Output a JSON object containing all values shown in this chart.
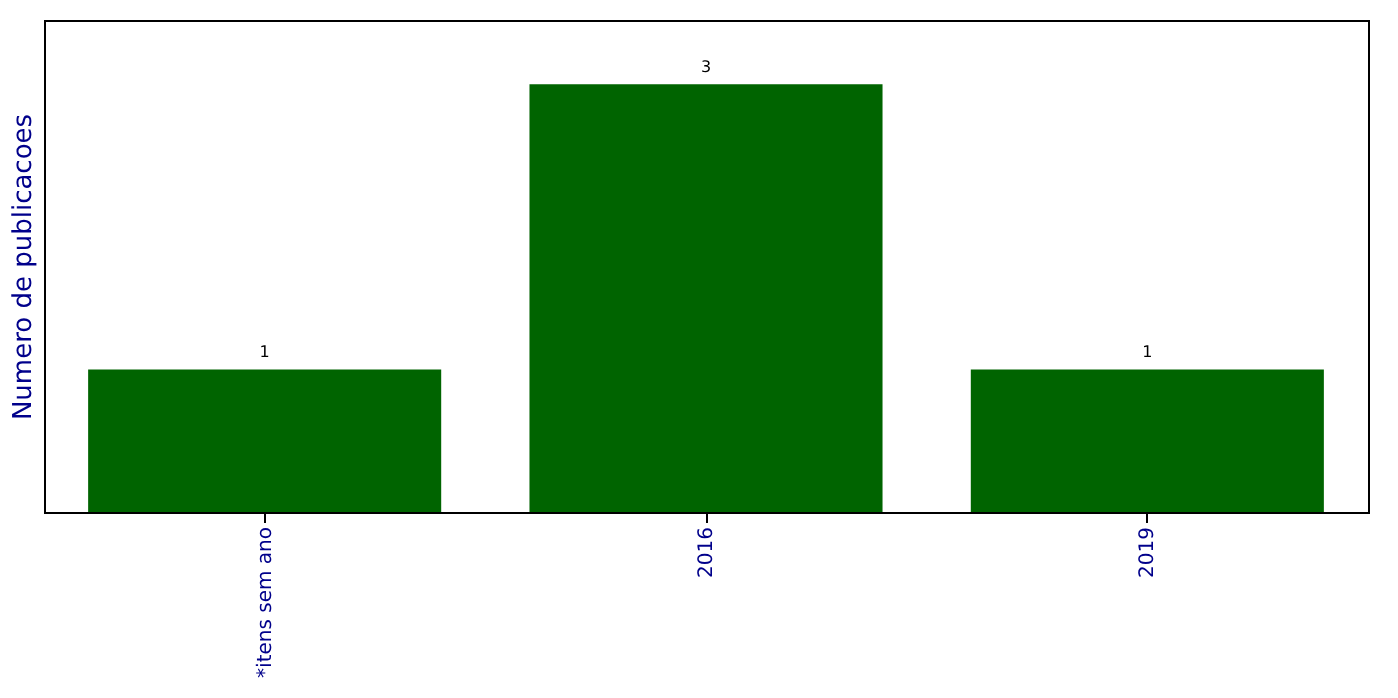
{
  "chart_data": {
    "type": "bar",
    "ylabel": "Numero de publicacoes",
    "categories": [
      "*itens sem ano",
      "2016",
      "2019"
    ],
    "values": [
      1,
      3,
      1
    ],
    "color": "#006400",
    "data_labels": true,
    "ylim": [
      0,
      3.45
    ],
    "tick_labels": "x",
    "grid": false
  }
}
